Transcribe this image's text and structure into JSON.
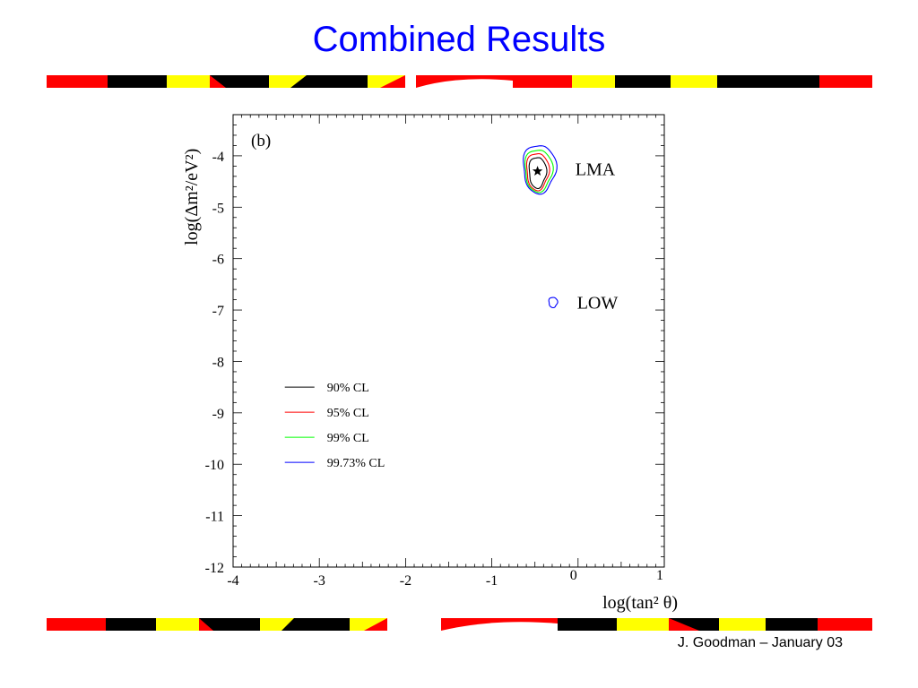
{
  "slide": {
    "title": "Combined Results",
    "footer": "J. Goodman – January 03"
  },
  "colors": {
    "title": "#0000ff",
    "stripe_red": "#ff0000",
    "stripe_black": "#000000",
    "stripe_yellow": "#ffff00"
  },
  "chart_data": {
    "type": "contour",
    "panel_label": "(b)",
    "xlabel": "log(tan² θ)",
    "ylabel": "log(Δm²/eV²)",
    "xlim": [
      -4,
      1
    ],
    "ylim": [
      -12,
      -3.2
    ],
    "x_ticks": [
      -4,
      -3,
      -2,
      -1,
      0,
      1
    ],
    "y_ticks": [
      -12,
      -11,
      -10,
      -9,
      -8,
      -7,
      -6,
      -5,
      -4
    ],
    "grid": false,
    "legend_position": "lower-left",
    "series": [
      {
        "name": "90% CL",
        "color": "#000000"
      },
      {
        "name": "95% CL",
        "color": "#ff0000"
      },
      {
        "name": "99% CL",
        "color": "#00ff00"
      },
      {
        "name": "99.73% CL",
        "color": "#0000ff"
      }
    ],
    "regions": [
      {
        "label": "LMA",
        "best_fit": {
          "x": -0.47,
          "y": -4.3
        },
        "contours": [
          {
            "level": "90% CL",
            "center": [
              -0.47,
              -4.32
            ],
            "half_width": 0.1,
            "half_height": 0.3
          },
          {
            "level": "95% CL",
            "center": [
              -0.47,
              -4.3
            ],
            "half_width": 0.13,
            "half_height": 0.36
          },
          {
            "level": "99% CL",
            "center": [
              -0.46,
              -4.28
            ],
            "half_width": 0.16,
            "half_height": 0.41
          },
          {
            "level": "99.73% CL",
            "center": [
              -0.45,
              -4.25
            ],
            "half_width": 0.19,
            "half_height": 0.47
          }
        ]
      },
      {
        "label": "LOW",
        "contours": [
          {
            "level": "99.73% CL",
            "center": [
              -0.29,
              -6.85
            ],
            "half_width": 0.05,
            "half_height": 0.1
          }
        ]
      }
    ]
  }
}
